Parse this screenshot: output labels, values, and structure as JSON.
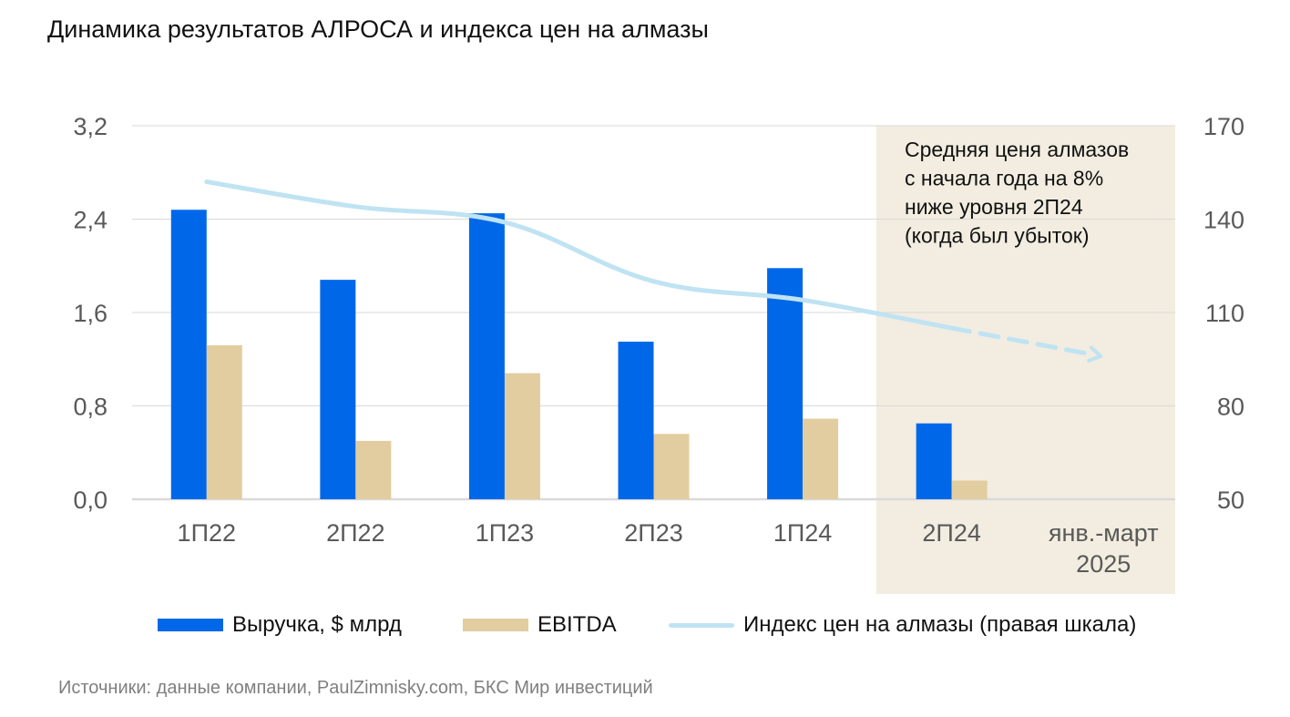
{
  "title": "Динамика результатов АЛРОСА и индекса цен на алмазы",
  "source": "Источники: данные компании, PaulZimnisky.com, БКС Мир инвестиций",
  "colors": {
    "revenue": "#0068E8",
    "ebitda": "#E2CDA0",
    "index": "#BFE3F2",
    "highlight": "#F2EDE0",
    "grid": "#D9D9D9",
    "axis_text": "#595959"
  },
  "legend": {
    "revenue_label": "Выручка, $ млрд",
    "ebitda_label": "EBITDA",
    "index_label": "Индекс цен на алмазы (правая шкала)"
  },
  "chart_data": {
    "type": "bar",
    "title": "Динамика результатов АЛРОСА и индекса цен на алмазы",
    "categories": [
      "1П22",
      "2П22",
      "1П23",
      "2П23",
      "1П24",
      "2П24",
      "янв.-март 2025"
    ],
    "category_lines": [
      [
        "1П22"
      ],
      [
        "2П22"
      ],
      [
        "1П23"
      ],
      [
        "2П23"
      ],
      [
        "1П24"
      ],
      [
        "2П24"
      ],
      [
        "янв.-март",
        "2025"
      ]
    ],
    "series": [
      {
        "name": "Выручка, $ млрд",
        "type": "bar",
        "axis": "left",
        "values": [
          2.48,
          1.88,
          2.45,
          1.35,
          1.98,
          0.65,
          null
        ]
      },
      {
        "name": "EBITDA",
        "type": "bar",
        "axis": "left",
        "values": [
          1.32,
          0.5,
          1.08,
          0.56,
          0.69,
          0.16,
          null
        ]
      },
      {
        "name": "Индекс цен на алмазы (правая шкала)",
        "type": "line",
        "axis": "right",
        "values": [
          152,
          144,
          139,
          120,
          114,
          105,
          96
        ],
        "dashed_from_index": 5
      }
    ],
    "y_left": {
      "lim": [
        0,
        3.2
      ],
      "ticks": [
        "0,0",
        "0,8",
        "1,6",
        "2,4",
        "3,2"
      ],
      "tick_values": [
        0,
        0.8,
        1.6,
        2.4,
        3.2
      ]
    },
    "y_right": {
      "lim": [
        50,
        170
      ],
      "ticks": [
        "50",
        "80",
        "110",
        "140",
        "170"
      ],
      "tick_values": [
        50,
        80,
        110,
        140,
        170
      ]
    },
    "grid": true,
    "legend_position": "bottom",
    "highlight_categories": [
      "2П24",
      "янв.-март 2025"
    ],
    "annotation": {
      "lines": [
        "Средняя ценя алмазов",
        "с начала года на 8%",
        "ниже уровня 2П24",
        "(когда был убыток)"
      ]
    }
  }
}
